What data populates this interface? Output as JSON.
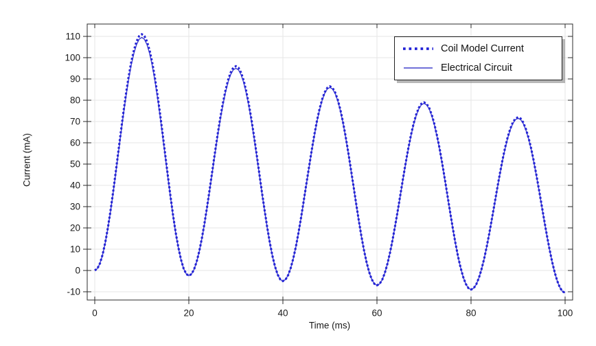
{
  "chart_data": {
    "type": "line",
    "title": "",
    "xlabel": "Time (ms)",
    "ylabel": "Current (mA)",
    "xlim": [
      -1.6,
      101.6
    ],
    "ylim": [
      -13.9,
      115.8
    ],
    "x_ticks": [
      0,
      20,
      40,
      60,
      80,
      100
    ],
    "y_ticks": [
      -10,
      0,
      10,
      20,
      30,
      40,
      50,
      60,
      70,
      80,
      90,
      100,
      110
    ],
    "grid": true,
    "legend_position": "top-right",
    "waveform_note": "Damped oscillation, 20 ms period; smooth cosine-shaped arches between the listed extremes",
    "x_keypoints": [
      0,
      10,
      20,
      30,
      40,
      50,
      60,
      70,
      80,
      90,
      100
    ],
    "series": [
      {
        "name": "Coil Model Current",
        "style": "dotted",
        "color": "#2222d6",
        "line_width": 3.1,
        "values_mA": [
          0,
          111,
          -2.5,
          96,
          -5,
          86.5,
          -7,
          79,
          -9,
          72,
          -10.5
        ]
      },
      {
        "name": "Electrical Circuit",
        "style": "solid",
        "color": "#4040cc",
        "line_width": 1.4,
        "values_mA": [
          0,
          109.5,
          -2.5,
          95,
          -5,
          86,
          -7,
          78.5,
          -9,
          71.5,
          -10.5
        ]
      }
    ],
    "colors": {
      "grid": "#e6e6e6",
      "frame": "#2b2b2b",
      "tick_text": "#1a1a1a",
      "background": "#ffffff"
    }
  }
}
